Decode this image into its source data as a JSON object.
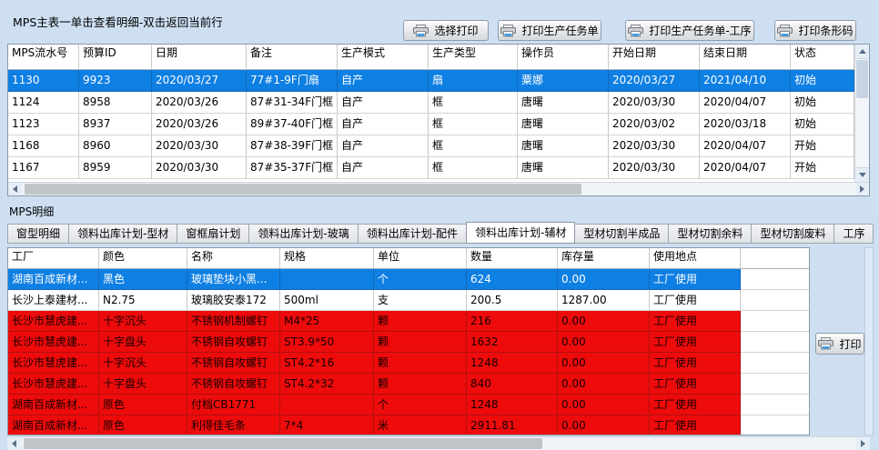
{
  "colors": {
    "background": "#cedff2",
    "selected_row_bg": "#0e7fe3",
    "alert_row_bg": "#ee0b0b"
  },
  "master": {
    "title": "MPS主表一单击查看明细-双击返回当前行",
    "buttons": [
      "选择打印",
      "打印生产任务单",
      "打印生产任务单-工序",
      "打印条形码"
    ],
    "table": {
      "columns": [
        "MPS流水号",
        "预算ID",
        "日期",
        "备注",
        "生产模式",
        "生产类型",
        "操作员",
        "开始日期",
        "结束日期",
        "状态"
      ],
      "rows": [
        {
          "state": "selected",
          "cells": [
            "1130",
            "9923",
            "2020/03/27",
            "77#1-9F门扇",
            "自产",
            "扇",
            "粟娜",
            "2020/03/27",
            "2021/04/10",
            "初始"
          ]
        },
        {
          "state": "normal",
          "cells": [
            "1124",
            "8958",
            "2020/03/26",
            "87#31-34F门框",
            "自产",
            "框",
            "唐曙",
            "2020/03/30",
            "2020/04/07",
            "初始"
          ]
        },
        {
          "state": "normal",
          "cells": [
            "1123",
            "8937",
            "2020/03/26",
            "89#37-40F门框",
            "自产",
            "框",
            "唐曙",
            "2020/03/02",
            "2020/03/18",
            "初始"
          ]
        },
        {
          "state": "normal",
          "cells": [
            "1168",
            "8960",
            "2020/03/30",
            "87#38-39F门框",
            "自产",
            "框",
            "唐曙",
            "2020/03/30",
            "2020/04/07",
            "开始"
          ]
        },
        {
          "state": "normal",
          "cells": [
            "1167",
            "8959",
            "2020/03/30",
            "87#35-37F门框",
            "自产",
            "框",
            "唐曙",
            "2020/03/30",
            "2020/04/07",
            "开始"
          ]
        }
      ]
    }
  },
  "detail": {
    "label": "MPS明细",
    "tabs": [
      "窗型明细",
      "领料出库计划-型材",
      "窗框扇计划",
      "领料出库计划-玻璃",
      "领料出库计划-配件",
      "领料出库计划-辅材",
      "型材切割半成品",
      "型材切割余料",
      "型材切割废料",
      "工序"
    ],
    "active_tab": "领料出库计划-辅材",
    "active_tab_index": 5,
    "print_button": "打印",
    "table": {
      "columns": [
        "工厂",
        "颜色",
        "名称",
        "规格",
        "单位",
        "数量",
        "库存量",
        "使用地点"
      ],
      "rows": [
        {
          "state": "selected",
          "cells": [
            "湖南百成新材...",
            "黑色",
            "玻璃垫块小黑...",
            "",
            "个",
            "624",
            "0.00",
            "工厂使用"
          ]
        },
        {
          "state": "normal",
          "cells": [
            "长沙上泰建材...",
            "N2.75",
            "玻璃胶安泰172",
            "500ml",
            "支",
            "200.5",
            "1287.00",
            "工厂使用"
          ]
        },
        {
          "state": "alert",
          "cells": [
            "长沙市慧虎建...",
            "十字沉头",
            "不锈钢机制螺钉",
            "M4*25",
            "颗",
            "216",
            "0.00",
            "工厂使用"
          ]
        },
        {
          "state": "alert",
          "cells": [
            "长沙市慧虎建...",
            "十字盘头",
            "不锈钢自攻螺钉",
            "ST3.9*50",
            "颗",
            "1632",
            "0.00",
            "工厂使用"
          ]
        },
        {
          "state": "alert",
          "cells": [
            "长沙市慧虎建...",
            "十字沉头",
            "不锈钢自攻螺钉",
            "ST4.2*16",
            "颗",
            "1248",
            "0.00",
            "工厂使用"
          ]
        },
        {
          "state": "alert",
          "cells": [
            "长沙市慧虎建...",
            "十字盘头",
            "不锈钢自攻螺钉",
            "ST4.2*32",
            "颗",
            "840",
            "0.00",
            "工厂使用"
          ]
        },
        {
          "state": "alert",
          "cells": [
            "湖南百成新材...",
            "原色",
            "付档CB1771",
            "",
            "个",
            "1248",
            "0.00",
            "工厂使用"
          ]
        },
        {
          "state": "alert",
          "cells": [
            "湖南百成新材...",
            "原色",
            "利得佳毛条",
            "7*4",
            "米",
            "2911.81",
            "0.00",
            "工厂使用"
          ]
        }
      ]
    }
  }
}
